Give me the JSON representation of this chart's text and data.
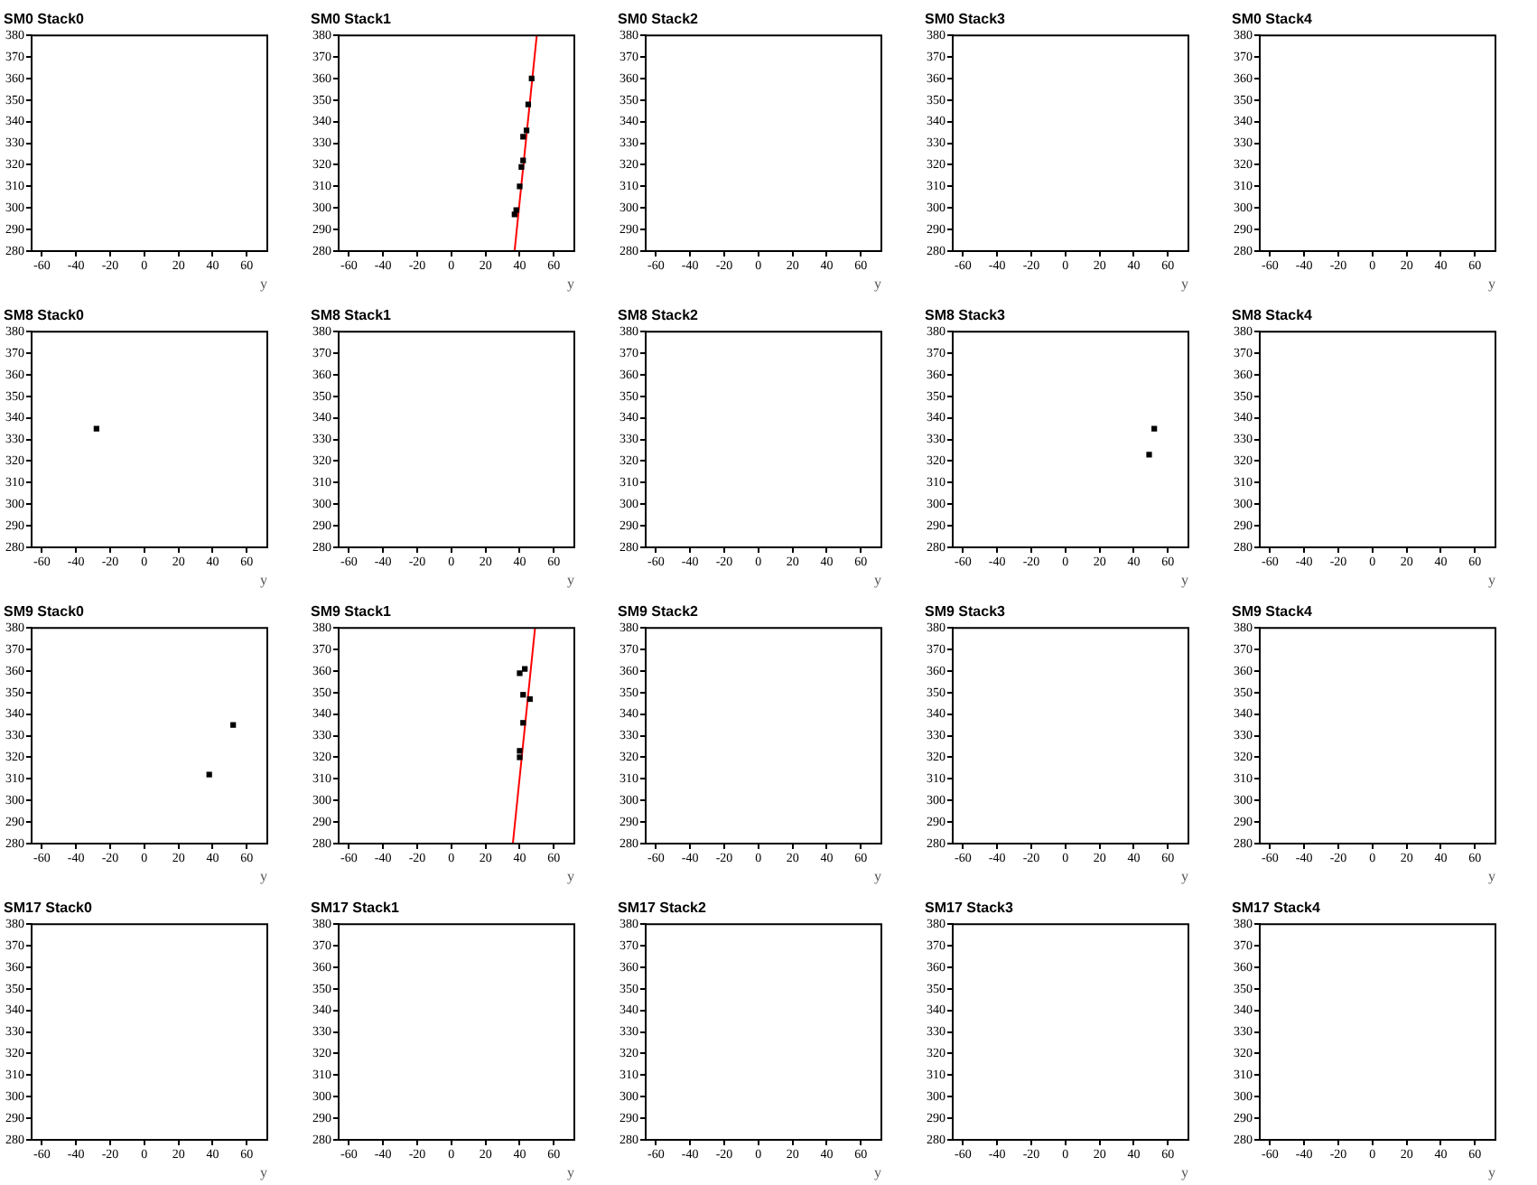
{
  "chart_data": [
    {
      "type": "scatter",
      "title": "SM0 Stack0",
      "xlabel": "y",
      "xlim": [
        -66,
        72
      ],
      "xticks": [
        -60,
        -40,
        -20,
        0,
        20,
        40,
        60
      ],
      "ylim": [
        280,
        380
      ],
      "yticks": [
        280,
        290,
        300,
        310,
        320,
        330,
        340,
        350,
        360,
        370,
        380
      ]
    },
    {
      "type": "scatter",
      "title": "SM0 Stack1",
      "xlabel": "y",
      "xlim": [
        -66,
        72
      ],
      "xticks": [
        -60,
        -40,
        -20,
        0,
        20,
        40,
        60
      ],
      "ylim": [
        280,
        380
      ],
      "yticks": [
        280,
        290,
        300,
        310,
        320,
        330,
        340,
        350,
        360,
        370,
        380
      ],
      "marker": "square",
      "series": [
        {
          "color": "#000000",
          "x": [
            47,
            45,
            44,
            42,
            42,
            41,
            40,
            38,
            37
          ],
          "values": [
            360,
            348,
            336,
            333,
            322,
            319,
            310,
            299,
            297
          ]
        },
        {
          "type": "line",
          "marker": "none",
          "color": "#ff0000",
          "x": [
            37,
            50
          ],
          "values": [
            280,
            380
          ]
        }
      ]
    },
    {
      "type": "scatter",
      "title": "SM0 Stack2",
      "xlabel": "y",
      "xlim": [
        -66,
        72
      ],
      "xticks": [
        -60,
        -40,
        -20,
        0,
        20,
        40,
        60
      ],
      "ylim": [
        280,
        380
      ],
      "yticks": [
        280,
        290,
        300,
        310,
        320,
        330,
        340,
        350,
        360,
        370,
        380
      ]
    },
    {
      "type": "scatter",
      "title": "SM0 Stack3",
      "xlabel": "y",
      "xlim": [
        -66,
        72
      ],
      "xticks": [
        -60,
        -40,
        -20,
        0,
        20,
        40,
        60
      ],
      "ylim": [
        280,
        380
      ],
      "yticks": [
        280,
        290,
        300,
        310,
        320,
        330,
        340,
        350,
        360,
        370,
        380
      ]
    },
    {
      "type": "scatter",
      "title": "SM0 Stack4",
      "xlabel": "y",
      "xlim": [
        -66,
        72
      ],
      "xticks": [
        -60,
        -40,
        -20,
        0,
        20,
        40,
        60
      ],
      "ylim": [
        280,
        380
      ],
      "yticks": [
        280,
        290,
        300,
        310,
        320,
        330,
        340,
        350,
        360,
        370,
        380
      ]
    },
    {
      "type": "scatter",
      "title": "SM8 Stack0",
      "xlabel": "y",
      "xlim": [
        -66,
        72
      ],
      "xticks": [
        -60,
        -40,
        -20,
        0,
        20,
        40,
        60
      ],
      "ylim": [
        280,
        380
      ],
      "yticks": [
        280,
        290,
        300,
        310,
        320,
        330,
        340,
        350,
        360,
        370,
        380
      ],
      "marker": "square",
      "series": [
        {
          "color": "#000000",
          "x": [
            -28
          ],
          "values": [
            335
          ]
        }
      ]
    },
    {
      "type": "scatter",
      "title": "SM8 Stack1",
      "xlabel": "y",
      "xlim": [
        -66,
        72
      ],
      "xticks": [
        -60,
        -40,
        -20,
        0,
        20,
        40,
        60
      ],
      "ylim": [
        280,
        380
      ],
      "yticks": [
        280,
        290,
        300,
        310,
        320,
        330,
        340,
        350,
        360,
        370,
        380
      ]
    },
    {
      "type": "scatter",
      "title": "SM8 Stack2",
      "xlabel": "y",
      "xlim": [
        -66,
        72
      ],
      "xticks": [
        -60,
        -40,
        -20,
        0,
        20,
        40,
        60
      ],
      "ylim": [
        280,
        380
      ],
      "yticks": [
        280,
        290,
        300,
        310,
        320,
        330,
        340,
        350,
        360,
        370,
        380
      ]
    },
    {
      "type": "scatter",
      "title": "SM8 Stack3",
      "xlabel": "y",
      "xlim": [
        -66,
        72
      ],
      "xticks": [
        -60,
        -40,
        -20,
        0,
        20,
        40,
        60
      ],
      "ylim": [
        280,
        380
      ],
      "yticks": [
        280,
        290,
        300,
        310,
        320,
        330,
        340,
        350,
        360,
        370,
        380
      ],
      "marker": "square",
      "series": [
        {
          "color": "#000000",
          "x": [
            52,
            49
          ],
          "values": [
            335,
            323
          ]
        }
      ]
    },
    {
      "type": "scatter",
      "title": "SM8 Stack4",
      "xlabel": "y",
      "xlim": [
        -66,
        72
      ],
      "xticks": [
        -60,
        -40,
        -20,
        0,
        20,
        40,
        60
      ],
      "ylim": [
        280,
        380
      ],
      "yticks": [
        280,
        290,
        300,
        310,
        320,
        330,
        340,
        350,
        360,
        370,
        380
      ]
    },
    {
      "type": "scatter",
      "title": "SM9 Stack0",
      "xlabel": "y",
      "xlim": [
        -66,
        72
      ],
      "xticks": [
        -60,
        -40,
        -20,
        0,
        20,
        40,
        60
      ],
      "ylim": [
        280,
        380
      ],
      "yticks": [
        280,
        290,
        300,
        310,
        320,
        330,
        340,
        350,
        360,
        370,
        380
      ],
      "marker": "square",
      "series": [
        {
          "color": "#000000",
          "x": [
            52,
            38
          ],
          "values": [
            335,
            312
          ]
        }
      ]
    },
    {
      "type": "scatter",
      "title": "SM9 Stack1",
      "xlabel": "y",
      "xlim": [
        -66,
        72
      ],
      "xticks": [
        -60,
        -40,
        -20,
        0,
        20,
        40,
        60
      ],
      "ylim": [
        280,
        380
      ],
      "yticks": [
        280,
        290,
        300,
        310,
        320,
        330,
        340,
        350,
        360,
        370,
        380
      ],
      "marker": "square",
      "series": [
        {
          "color": "#000000",
          "x": [
            43,
            40,
            42,
            46,
            42,
            40,
            40
          ],
          "values": [
            361,
            359,
            349,
            347,
            336,
            323,
            320
          ]
        },
        {
          "type": "line",
          "marker": "none",
          "color": "#ff0000",
          "x": [
            36,
            49
          ],
          "values": [
            280,
            380
          ]
        }
      ]
    },
    {
      "type": "scatter",
      "title": "SM9 Stack2",
      "xlabel": "y",
      "xlim": [
        -66,
        72
      ],
      "xticks": [
        -60,
        -40,
        -20,
        0,
        20,
        40,
        60
      ],
      "ylim": [
        280,
        380
      ],
      "yticks": [
        280,
        290,
        300,
        310,
        320,
        330,
        340,
        350,
        360,
        370,
        380
      ]
    },
    {
      "type": "scatter",
      "title": "SM9 Stack3",
      "xlabel": "y",
      "xlim": [
        -66,
        72
      ],
      "xticks": [
        -60,
        -40,
        -20,
        0,
        20,
        40,
        60
      ],
      "ylim": [
        280,
        380
      ],
      "yticks": [
        280,
        290,
        300,
        310,
        320,
        330,
        340,
        350,
        360,
        370,
        380
      ]
    },
    {
      "type": "scatter",
      "title": "SM9 Stack4",
      "xlabel": "y",
      "xlim": [
        -66,
        72
      ],
      "xticks": [
        -60,
        -40,
        -20,
        0,
        20,
        40,
        60
      ],
      "ylim": [
        280,
        380
      ],
      "yticks": [
        280,
        290,
        300,
        310,
        320,
        330,
        340,
        350,
        360,
        370,
        380
      ]
    },
    {
      "type": "scatter",
      "title": "SM17 Stack0",
      "xlabel": "y",
      "xlim": [
        -66,
        72
      ],
      "xticks": [
        -60,
        -40,
        -20,
        0,
        20,
        40,
        60
      ],
      "ylim": [
        280,
        380
      ],
      "yticks": [
        280,
        290,
        300,
        310,
        320,
        330,
        340,
        350,
        360,
        370,
        380
      ]
    },
    {
      "type": "scatter",
      "title": "SM17 Stack1",
      "xlabel": "y",
      "xlim": [
        -66,
        72
      ],
      "xticks": [
        -60,
        -40,
        -20,
        0,
        20,
        40,
        60
      ],
      "ylim": [
        280,
        380
      ],
      "yticks": [
        280,
        290,
        300,
        310,
        320,
        330,
        340,
        350,
        360,
        370,
        380
      ]
    },
    {
      "type": "scatter",
      "title": "SM17 Stack2",
      "xlabel": "y",
      "xlim": [
        -66,
        72
      ],
      "xticks": [
        -60,
        -40,
        -20,
        0,
        20,
        40,
        60
      ],
      "ylim": [
        280,
        380
      ],
      "yticks": [
        280,
        290,
        300,
        310,
        320,
        330,
        340,
        350,
        360,
        370,
        380
      ]
    },
    {
      "type": "scatter",
      "title": "SM17 Stack3",
      "xlabel": "y",
      "xlim": [
        -66,
        72
      ],
      "xticks": [
        -60,
        -40,
        -20,
        0,
        20,
        40,
        60
      ],
      "ylim": [
        280,
        380
      ],
      "yticks": [
        280,
        290,
        300,
        310,
        320,
        330,
        340,
        350,
        360,
        370,
        380
      ]
    },
    {
      "type": "scatter",
      "title": "SM17 Stack4",
      "xlabel": "y",
      "xlim": [
        -66,
        72
      ],
      "xticks": [
        -60,
        -40,
        -20,
        0,
        20,
        40,
        60
      ],
      "ylim": [
        280,
        380
      ],
      "yticks": [
        280,
        290,
        300,
        310,
        320,
        330,
        340,
        350,
        360,
        370,
        380
      ]
    }
  ]
}
